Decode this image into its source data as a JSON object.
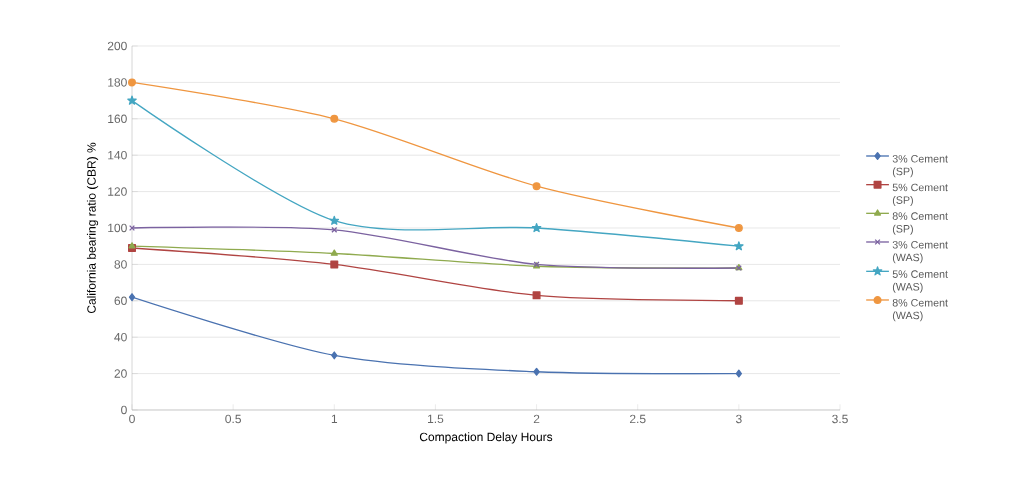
{
  "chart_data": {
    "type": "line",
    "xlabel": "Compaction Delay Hours",
    "ylabel": "California bearing ratio (CBR) %",
    "x": [
      0,
      1,
      2,
      3
    ],
    "series": [
      {
        "name": "3% Cement (SP)",
        "color": "#4a72b0",
        "marker": "diamond",
        "values": [
          62,
          30,
          21,
          20
        ]
      },
      {
        "name": "5% Cement (SP)",
        "color": "#b04442",
        "marker": "square",
        "values": [
          89,
          80,
          63,
          60
        ]
      },
      {
        "name": "8% Cement (SP)",
        "color": "#8faa4e",
        "marker": "triangle",
        "values": [
          90,
          86,
          79,
          78
        ]
      },
      {
        "name": "3% Cement (WAS)",
        "color": "#7b62a0",
        "marker": "cross",
        "values": [
          100,
          99,
          80,
          78
        ]
      },
      {
        "name": "5% Cement (WAS)",
        "color": "#44a6c2",
        "marker": "star",
        "values": [
          170,
          104,
          100,
          90
        ]
      },
      {
        "name": "8% Cement (WAS)",
        "color": "#ef9640",
        "marker": "circle",
        "values": [
          180,
          160,
          123,
          100
        ]
      }
    ],
    "xlim": [
      0,
      3.5
    ],
    "xticks": [
      0,
      0.5,
      1,
      1.5,
      2,
      2.5,
      3,
      3.5
    ],
    "ylim": [
      0,
      200
    ],
    "yticks": [
      0,
      20,
      40,
      60,
      80,
      100,
      120,
      140,
      160,
      180,
      200
    ],
    "grid": "y",
    "legend": "right",
    "line_style": "solid"
  }
}
